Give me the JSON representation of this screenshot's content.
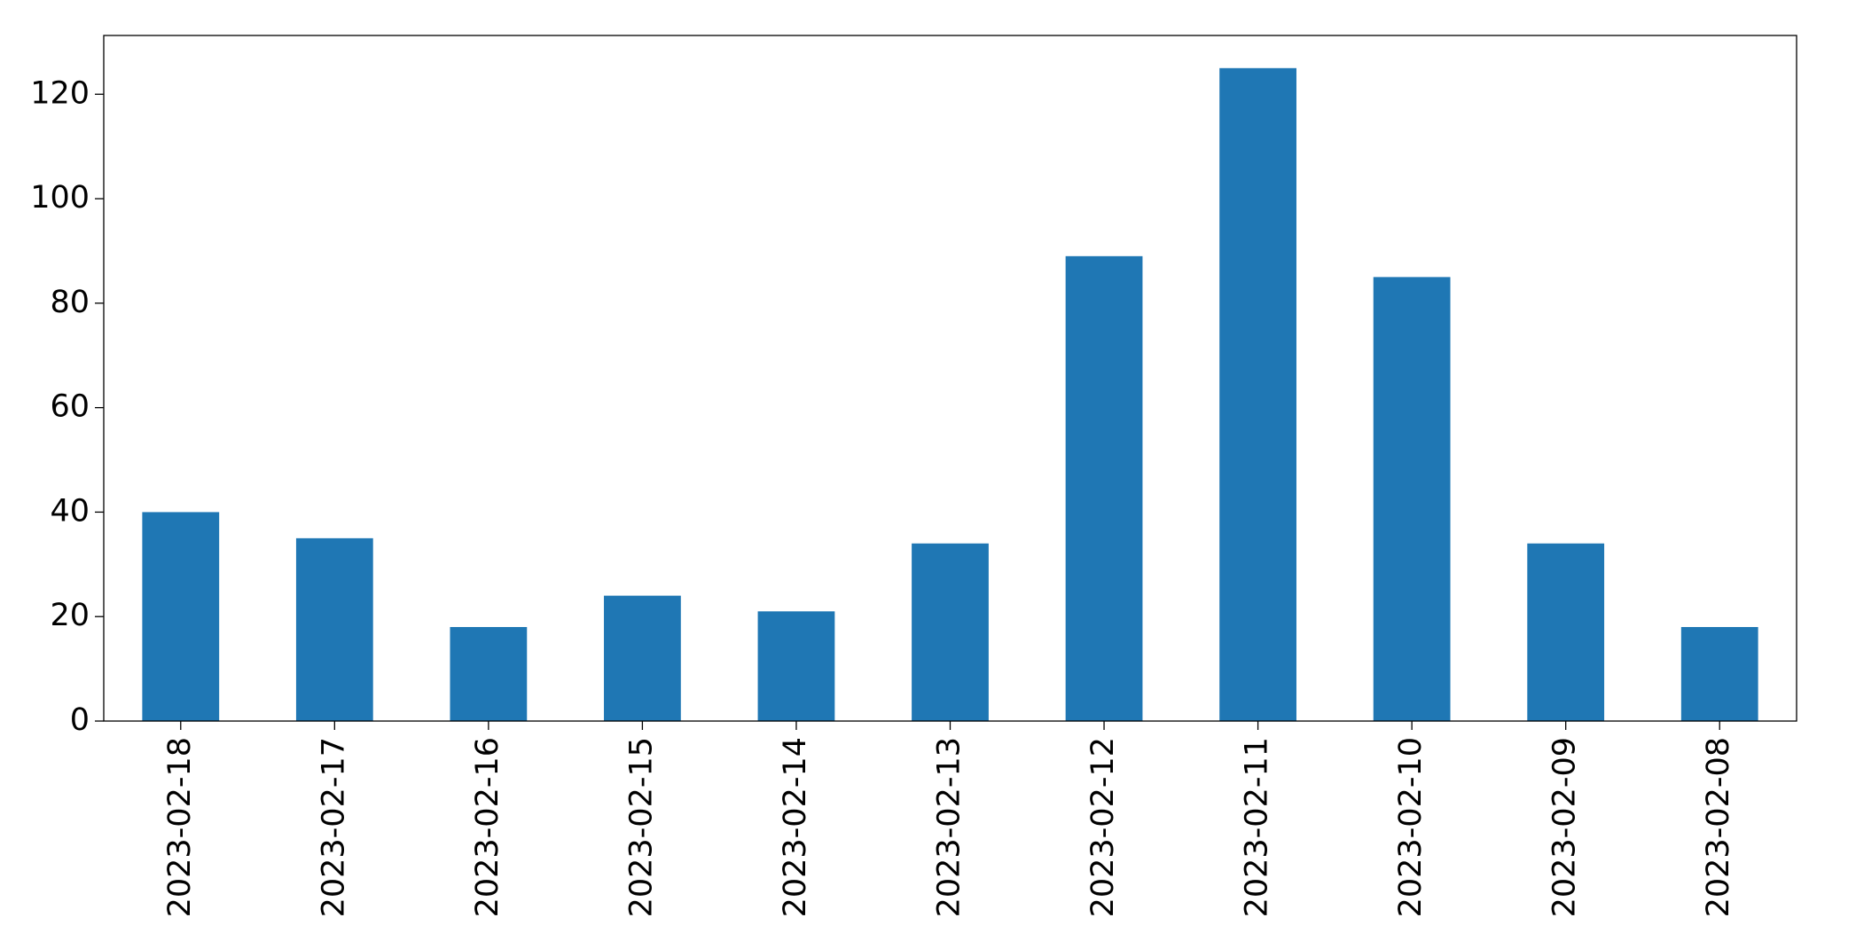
{
  "chart_data": {
    "type": "bar",
    "categories": [
      "2023-02-18",
      "2023-02-17",
      "2023-02-16",
      "2023-02-15",
      "2023-02-14",
      "2023-02-13",
      "2023-02-12",
      "2023-02-11",
      "2023-02-10",
      "2023-02-09",
      "2023-02-08"
    ],
    "values": [
      40,
      35,
      18,
      24,
      21,
      34,
      89,
      125,
      85,
      34,
      18
    ],
    "color": "#1f77b4",
    "ylim": [
      0,
      131.25
    ],
    "yticks": [
      0,
      20,
      40,
      60,
      80,
      100,
      120
    ],
    "grid": false
  }
}
